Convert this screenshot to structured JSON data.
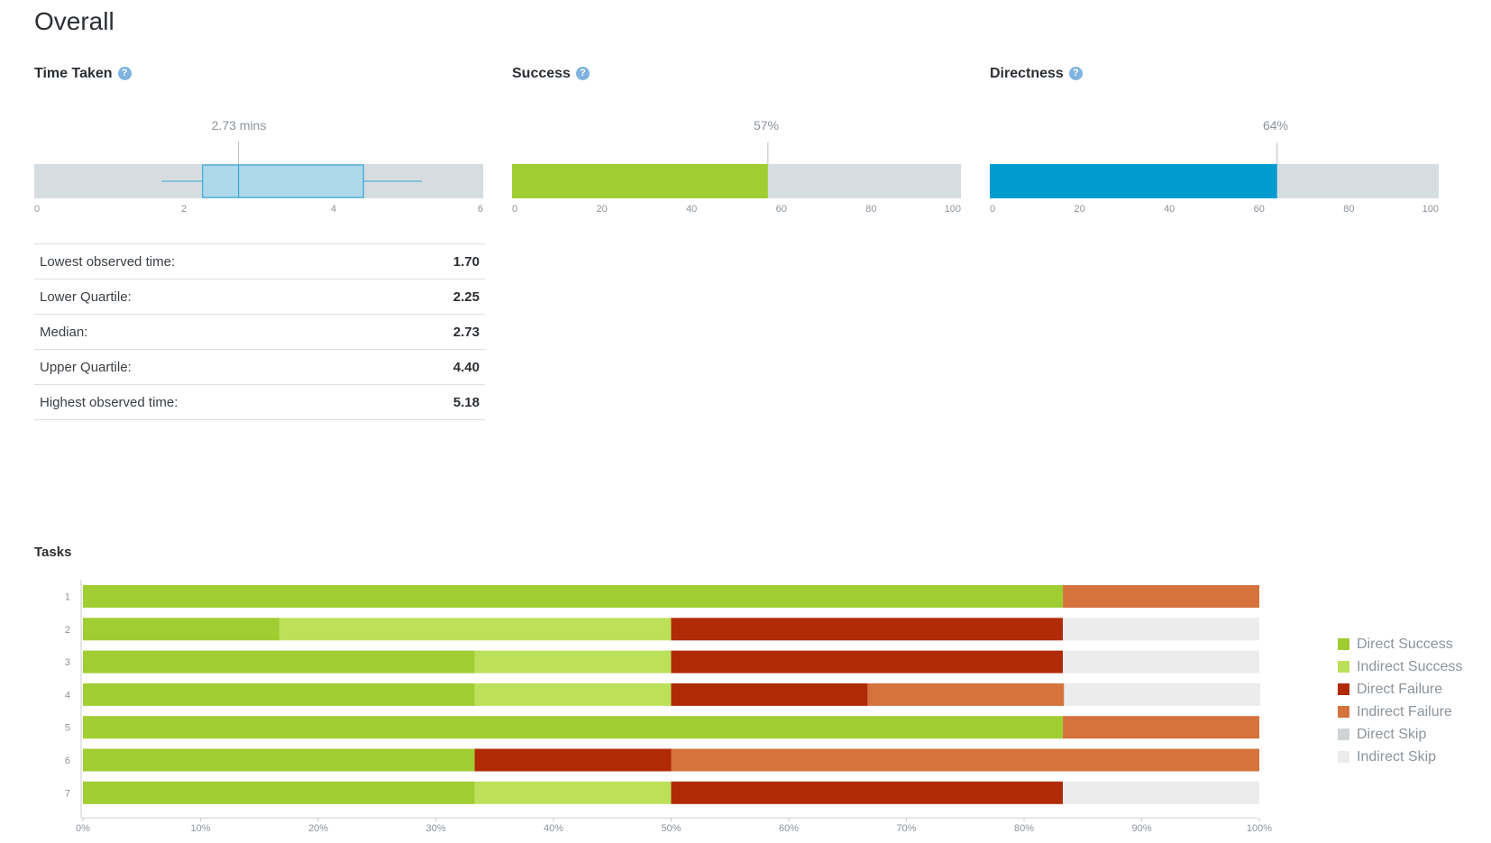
{
  "page_title": "Overall",
  "help_symbol": "?",
  "time_taken": {
    "title": "Time Taken",
    "median_label": "2.73 mins",
    "axis_ticks": [
      "0",
      "2",
      "4",
      "6"
    ],
    "stats": [
      {
        "label": "Lowest observed time:",
        "value": "1.70"
      },
      {
        "label": "Lower Quartile:",
        "value": "2.25"
      },
      {
        "label": "Median:",
        "value": "2.73"
      },
      {
        "label": "Upper Quartile:",
        "value": "4.40"
      },
      {
        "label": "Highest observed time:",
        "value": "5.18"
      }
    ]
  },
  "success": {
    "title": "Success",
    "value_label": "57%",
    "axis_ticks": [
      "0",
      "20",
      "40",
      "60",
      "80",
      "100"
    ]
  },
  "directness": {
    "title": "Directness",
    "value_label": "64%",
    "axis_ticks": [
      "0",
      "20",
      "40",
      "60",
      "80",
      "100"
    ]
  },
  "tasks": {
    "title": "Tasks"
  },
  "legend": [
    {
      "label": "Direct Success",
      "color": "#a0cd32"
    },
    {
      "label": "Indirect Success",
      "color": "#bde05b"
    },
    {
      "label": "Direct Failure",
      "color": "#b02a05"
    },
    {
      "label": "Indirect Failure",
      "color": "#d4733c"
    },
    {
      "label": "Direct Skip",
      "color": "#cfd3d6"
    },
    {
      "label": "Indirect Skip",
      "color": "#ececec"
    }
  ],
  "chart_data": [
    {
      "type": "box",
      "title": "Time Taken",
      "unit": "mins",
      "min": 1.7,
      "q1": 2.25,
      "median": 2.73,
      "q3": 4.4,
      "max": 5.18,
      "xlim": [
        0,
        6
      ],
      "ticks": [
        0,
        2,
        4,
        6
      ],
      "color": "#add9ea",
      "stroke": "#3aa6d4"
    },
    {
      "type": "bar",
      "title": "Success",
      "value": 57,
      "xlim": [
        0,
        100
      ],
      "ticks": [
        0,
        20,
        40,
        60,
        80,
        100
      ],
      "color": "#a0cd32"
    },
    {
      "type": "bar",
      "title": "Directness",
      "value": 64,
      "xlim": [
        0,
        100
      ],
      "ticks": [
        0,
        20,
        40,
        60,
        80,
        100
      ],
      "color": "#009bcf"
    },
    {
      "type": "bar",
      "orientation": "horizontal",
      "stacked": true,
      "title": "Tasks",
      "categories": [
        "1",
        "2",
        "3",
        "4",
        "5",
        "6",
        "7"
      ],
      "xlim": [
        0,
        100
      ],
      "x_ticks": [
        "0%",
        "10%",
        "20%",
        "30%",
        "40%",
        "50%",
        "60%",
        "70%",
        "80%",
        "90%",
        "100%"
      ],
      "legend_position": "right",
      "series": [
        {
          "name": "Direct Success",
          "color": "#a0cd32",
          "values": [
            83.3,
            16.7,
            33.3,
            33.3,
            83.3,
            33.3,
            33.3
          ]
        },
        {
          "name": "Indirect Success",
          "color": "#bde05b",
          "values": [
            0,
            33.3,
            16.7,
            16.7,
            0,
            0,
            16.7
          ]
        },
        {
          "name": "Direct Failure",
          "color": "#b02a05",
          "values": [
            0,
            33.3,
            33.3,
            16.7,
            0,
            16.7,
            33.3
          ]
        },
        {
          "name": "Indirect Failure",
          "color": "#d4733c",
          "values": [
            16.7,
            0,
            0,
            16.7,
            16.7,
            50,
            0
          ]
        },
        {
          "name": "Direct Skip",
          "color": "#cfd3d6",
          "values": [
            0,
            0,
            0,
            0,
            0,
            0,
            0
          ]
        },
        {
          "name": "Indirect Skip",
          "color": "#ececec",
          "values": [
            0,
            16.7,
            16.7,
            16.7,
            0,
            0,
            16.7
          ]
        }
      ]
    }
  ]
}
